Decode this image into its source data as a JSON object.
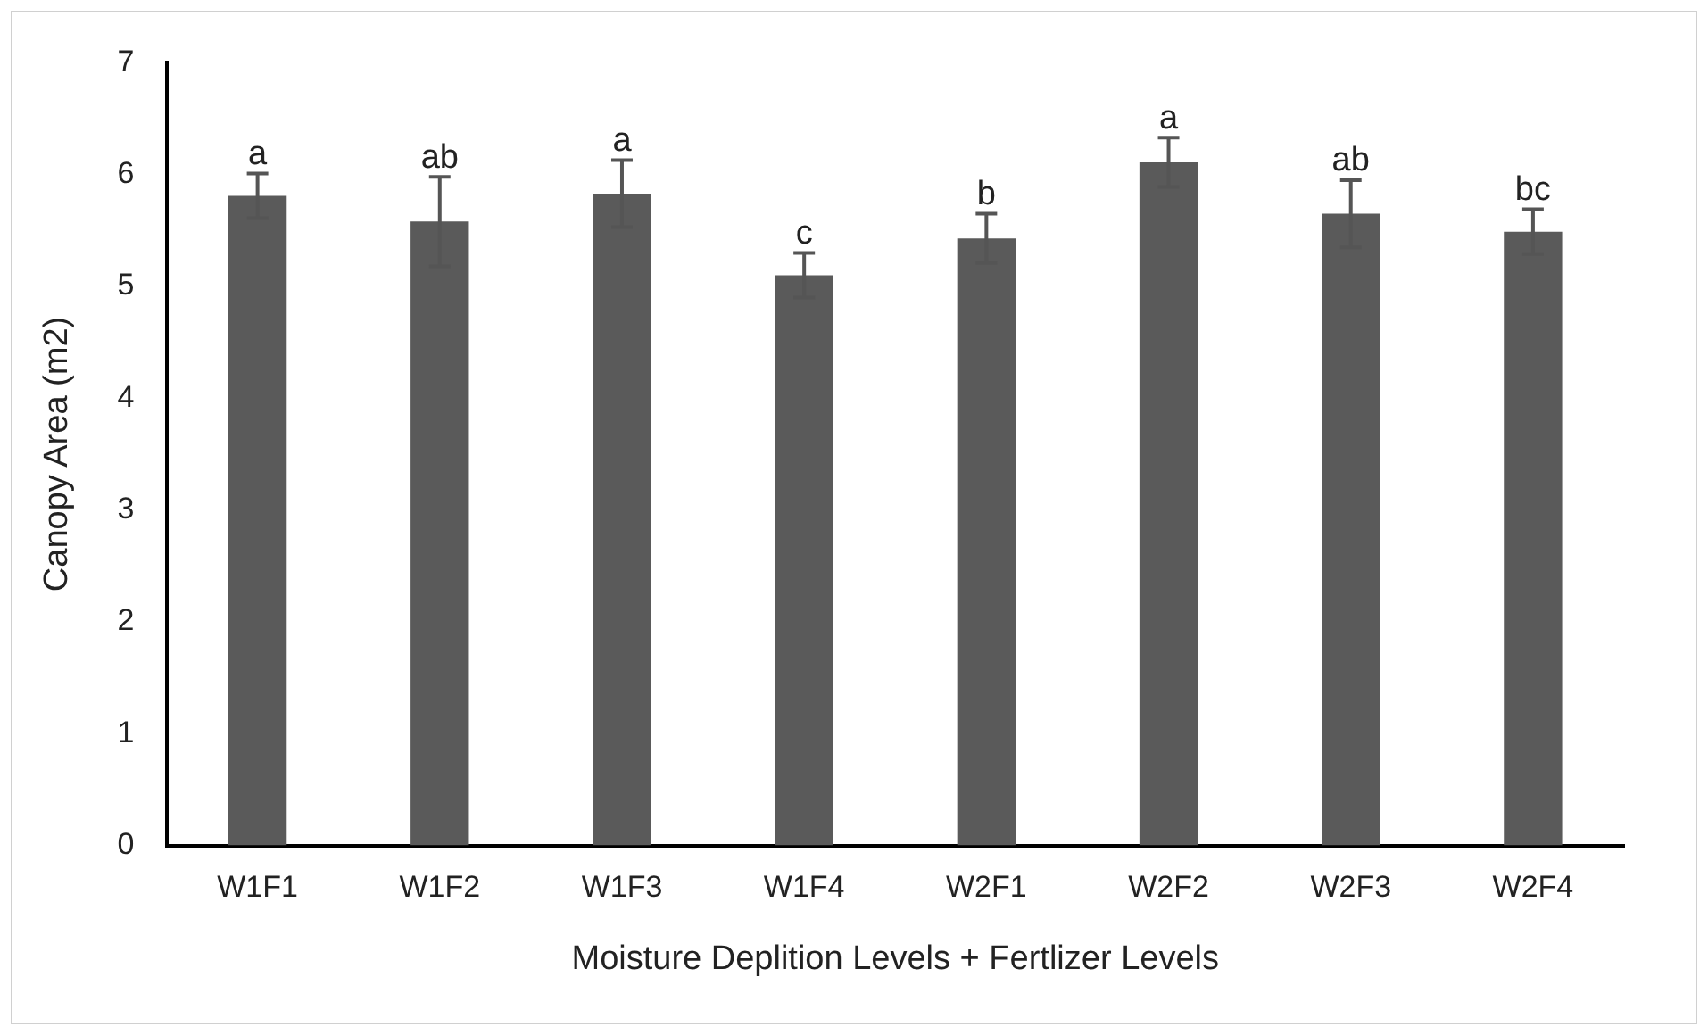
{
  "chart_data": {
    "type": "bar",
    "xlabel": "Moisture Deplition Levels + Fertlizer Levels",
    "ylabel": "Canopy Area (m2)",
    "categories": [
      "W1F1",
      "W1F2",
      "W1F3",
      "W1F4",
      "W2F1",
      "W2F2",
      "W2F3",
      "W2F4"
    ],
    "values": [
      5.81,
      5.58,
      5.83,
      5.1,
      5.43,
      6.11,
      5.65,
      5.49
    ],
    "errors": [
      0.2,
      0.4,
      0.3,
      0.2,
      0.22,
      0.22,
      0.3,
      0.2
    ],
    "color": "#5a5a5a",
    "ylim": [
      0,
      7
    ],
    "yticks": [
      0,
      1,
      2,
      3,
      4,
      5,
      6,
      7
    ],
    "grid": false,
    "legend": false,
    "annotations": [
      {
        "text": "a",
        "x": "W1F1",
        "y": 6.01
      },
      {
        "text": "ab",
        "x": "W1F2",
        "y": 5.98
      },
      {
        "text": "a",
        "x": "W1F3",
        "y": 6.13
      },
      {
        "text": "c",
        "x": "W1F4",
        "y": 5.3
      },
      {
        "text": "b",
        "x": "W2F1",
        "y": 5.65
      },
      {
        "text": "a",
        "x": "W2F2",
        "y": 6.33
      },
      {
        "text": "ab",
        "x": "W2F3",
        "y": 5.95
      },
      {
        "text": "bc",
        "x": "W2F4",
        "y": 5.69
      }
    ]
  }
}
